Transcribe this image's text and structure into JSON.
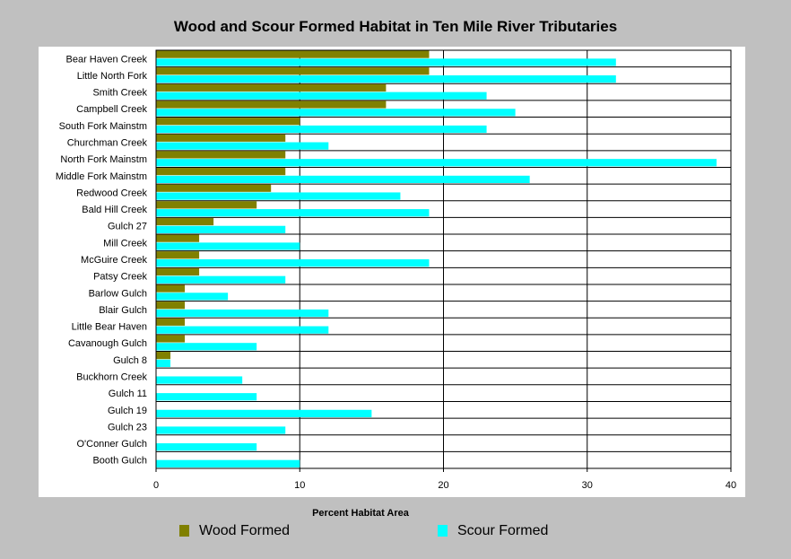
{
  "chart_data": {
    "type": "bar",
    "orientation": "horizontal",
    "title": "Wood and Scour Formed Habitat in Ten Mile River Tributaries",
    "xlabel": "Percent Habitat Area",
    "xlim": [
      0,
      40
    ],
    "xticks": [
      "0",
      "10",
      "20",
      "30",
      "40"
    ],
    "grid": true,
    "legend_position": "bottom",
    "categories": [
      "Bear Haven Creek",
      "Little North Fork",
      "Smith Creek",
      "Campbell Creek",
      "South Fork Mainstm",
      "Churchman Creek",
      "North Fork Mainstm",
      "Middle Fork Mainstm",
      "Redwood Creek",
      "Bald Hill Creek",
      "Gulch 27",
      "Mill Creek",
      "McGuire Creek",
      "Patsy Creek",
      "Barlow Gulch",
      "Blair Gulch",
      "Little Bear Haven",
      "Cavanough Gulch",
      "Gulch 8",
      "Buckhorn Creek",
      "Gulch 11",
      "Gulch 19",
      "Gulch 23",
      "O'Conner Gulch",
      "Booth Gulch"
    ],
    "series": [
      {
        "name": "Wood Formed",
        "color": "#808000",
        "values": [
          19,
          19,
          16,
          16,
          10,
          9,
          9,
          9,
          8,
          7,
          4,
          3,
          3,
          3,
          2,
          2,
          2,
          2,
          1,
          0,
          0,
          0,
          0,
          0,
          0
        ]
      },
      {
        "name": "Scour Formed",
        "color": "#00ffff",
        "values": [
          32,
          32,
          23,
          25,
          23,
          12,
          39,
          26,
          17,
          19,
          9,
          10,
          19,
          9,
          5,
          12,
          12,
          7,
          1,
          6,
          7,
          15,
          9,
          7,
          10
        ]
      }
    ]
  }
}
